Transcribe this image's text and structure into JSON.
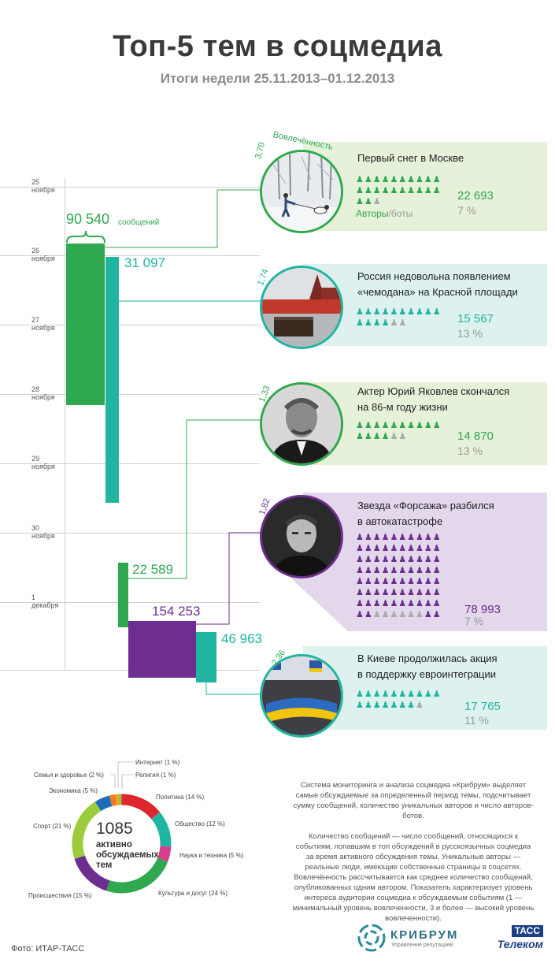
{
  "header": {
    "title": "Топ-5 тем в соцмедиа",
    "subtitle": "Итоги недели 25.11.2013–01.12.2013"
  },
  "days": [
    "25 ноября",
    "26 ноября",
    "27 ноября",
    "28 ноября",
    "29 ноября",
    "30 ноября",
    "1 декабря"
  ],
  "colors": {
    "green": "#2fa84f",
    "teal": "#1fb5a0",
    "purple": "#6d2e8f",
    "green_bg": "#e6f1d9",
    "teal_bg": "#ddf1ee",
    "purple_bg": "#e3d7ec"
  },
  "bars": {
    "total_label": "90 540",
    "total_unit": "сообщений",
    "values": [
      "31 097",
      "22 589",
      "154 253",
      "46 963"
    ]
  },
  "topics": [
    {
      "title_1": "Первый снег в Москве",
      "title_2": "",
      "engagement": "3,70",
      "engagement_label": "Вовлечённость",
      "messages": "22 693",
      "bots_pct": "7 %",
      "authors_label": "Авторы",
      "bots_label": "/боты",
      "photo": "snow-walk-dog-icon",
      "theme": "green"
    },
    {
      "title_1": "Россия недовольна появлением",
      "title_2": "«чемодана» на Красной площади",
      "engagement": "1,74",
      "messages": "15 567",
      "bots_pct": "13 %",
      "photo": "red-square-icon",
      "theme": "teal"
    },
    {
      "title_1": "Актер Юрий Яковлев скончался",
      "title_2": "на 86-м году жизни",
      "engagement": "1,33",
      "messages": "14 870",
      "bots_pct": "13 %",
      "photo": "portrait-icon",
      "theme": "green"
    },
    {
      "title_1": "Звезда «Форсажа» разбился",
      "title_2": "в автокатастрофе",
      "engagement": "1,82",
      "messages": "78 993",
      "bots_pct": "7 %",
      "photo": "portrait-icon",
      "theme": "purple"
    },
    {
      "title_1": "В Киеве продолжилась акция",
      "title_2": "в поддержку евроинтеграции",
      "engagement": "2,36",
      "messages": "17 765",
      "bots_pct": "11 %",
      "photo": "crowd-flags-icon",
      "theme": "teal"
    }
  ],
  "chart_data": {
    "type": "pie",
    "center_value": "1085",
    "center_label": "активно обсуждаемых тем",
    "categories": [
      "Интернет (1 %)",
      "Религия (1 %)",
      "Политика (14 %)",
      "Общество (12 %)",
      "Наука и техника (5 %)",
      "Культура и досуг (24 %)",
      "Происшествия (15 %)",
      "Спорт (21 %)",
      "Экономика (5 %)",
      "Семья и здоровье (2 %)"
    ],
    "values": [
      1,
      1,
      14,
      12,
      5,
      24,
      15,
      21,
      5,
      2
    ],
    "colors": [
      "#f2a31b",
      "#8cc63f",
      "#e0262d",
      "#1fb5a0",
      "#d63f8c",
      "#2fa84f",
      "#6d2e8f",
      "#9ccb3b",
      "#1b6fb8",
      "#f47b20"
    ]
  },
  "description": {
    "p1": "Система мониторинга и анализа соцмедиа «Крибрум» выделяет самые обсуждаемые за определенный период темы, подсчитывает сумму сообщений, количество уникальных авторов и число авторов-ботов.",
    "p2": "Количество сообщений — число сообщений, относящихся к событиям, попавшим в топ обсуждений в русскоязычных соцмедиа за время активного обсуждения темы. Уникальные авторы — реальные люди, имеющие собственные страницы в соцсетях. Вовлечённость рассчитывается как среднее количество сообщений, опубликованных одним автором. Показатель характеризует уровень интереса аудитории соцмедиа к обсуждаемым событиям (1 — минимальный уровень вовлеченности, 3 и более — высокий уровень вовлеченности)."
  },
  "footer": {
    "photo_credit": "Фото: ИТАР-ТАСС",
    "kribrum_name": "КРИБРУМ",
    "kribrum_tagline": "Управление репутацией",
    "tass_top": "ТАСС",
    "tass_bottom": "Телеком"
  }
}
